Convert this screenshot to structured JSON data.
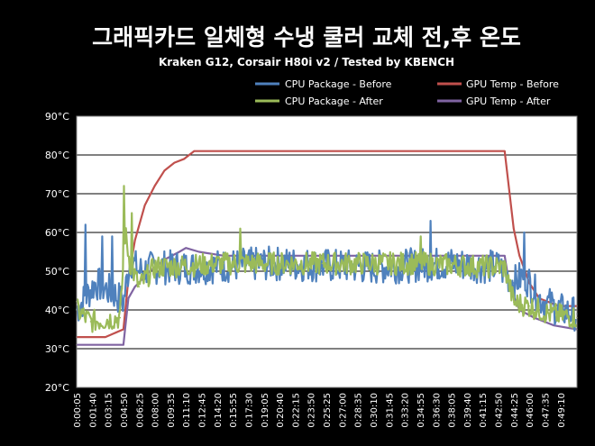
{
  "chart_data": {
    "type": "line",
    "title": "그래픽카드 일체형 수냉 쿨러 교체 전,후 온도",
    "subtitle": "Kraken G12, Corsair H80i v2 / Tested by KBENCH",
    "xlabel": "",
    "ylabel": "",
    "y_unit": "°C",
    "ylim": [
      20,
      90
    ],
    "y_ticks": [
      "20°C",
      "30°C",
      "40°C",
      "50°C",
      "60°C",
      "70°C",
      "80°C",
      "90°C"
    ],
    "grid": true,
    "legend_position": "top-right",
    "x_tick_labels": [
      "0:00:05",
      "0:01:40",
      "0:03:15",
      "0:04:50",
      "0:06:25",
      "0:08:00",
      "0:09:35",
      "0:11:10",
      "0:12:45",
      "0:14:20",
      "0:15:55",
      "0:17:30",
      "0:19:05",
      "0:20:40",
      "0:22:15",
      "0:23:50",
      "0:25:25",
      "0:27:00",
      "0:28:35",
      "0:30:10",
      "0:31:45",
      "0:33:20",
      "0:34:55",
      "0:36:30",
      "0:38:05",
      "0:39:40",
      "0:41:15",
      "0:42:50",
      "0:44:25",
      "0:46:00",
      "0:47:35",
      "0:49:10"
    ],
    "x_range_seconds": [
      5,
      3050
    ],
    "series": [
      {
        "name": "CPU  Package - Before",
        "color": "#4f81bd",
        "x": [
          "0:00:05",
          "0:02:00",
          "0:04:00",
          "0:04:50",
          "0:05:30",
          "0:06:25",
          "0:08:00",
          "0:12:00",
          "0:20:00",
          "0:30:00",
          "0:38:00",
          "0:43:00",
          "0:44:25",
          "0:45:30",
          "0:47:00",
          "0:49:00",
          "0:50:50"
        ],
        "y": [
          40,
          47,
          44,
          42,
          53,
          50,
          51,
          51,
          52,
          51,
          52,
          51,
          47,
          49,
          43,
          40,
          39
        ],
        "noise_amp": 4.5,
        "spikes": [
          [
            "0:01:00",
            62
          ],
          [
            "0:02:40",
            59
          ],
          [
            "0:03:40",
            59
          ],
          [
            "0:04:20",
            60
          ],
          [
            "0:10:20",
            60
          ],
          [
            "0:36:00",
            63
          ],
          [
            "0:45:30",
            60
          ]
        ]
      },
      {
        "name": "CPU  Package - After",
        "color": "#9bbb59",
        "x": [
          "0:00:05",
          "0:01:30",
          "0:04:30",
          "0:05:00",
          "0:05:30",
          "0:06:25",
          "0:08:00",
          "0:15:00",
          "0:25:00",
          "0:35:00",
          "0:43:30",
          "0:44:25",
          "0:46:00",
          "0:48:00",
          "0:50:50"
        ],
        "y": [
          40,
          37,
          38,
          60,
          52,
          46,
          51,
          52,
          52,
          52,
          51,
          42,
          41,
          39,
          38
        ],
        "noise_amp": 3.0,
        "spikes": [
          [
            "0:04:55",
            72
          ],
          [
            "0:05:40",
            65
          ],
          [
            "0:16:40",
            61
          ],
          [
            "0:35:00",
            59
          ]
        ]
      },
      {
        "name": "GPU  Temp - Before",
        "color": "#c0504d",
        "x": [
          "0:00:05",
          "0:03:00",
          "0:04:50",
          "0:05:20",
          "0:06:00",
          "0:07:00",
          "0:08:00",
          "0:09:00",
          "0:10:00",
          "0:11:00",
          "0:12:00",
          "0:30:00",
          "0:43:30",
          "0:44:00",
          "0:44:25",
          "0:45:00",
          "0:46:00",
          "0:47:00",
          "0:48:00",
          "0:49:00",
          "0:50:50"
        ],
        "y": [
          33,
          33,
          35,
          48,
          58,
          67,
          72,
          76,
          78,
          79,
          81,
          81,
          81,
          70,
          61,
          54,
          47,
          43,
          42,
          41,
          41
        ]
      },
      {
        "name": "GPU  Temp - After",
        "color": "#8064a2",
        "x": [
          "0:00:05",
          "0:04:50",
          "0:05:20",
          "0:06:00",
          "0:07:30",
          "0:09:00",
          "0:10:30",
          "0:11:10",
          "0:12:30",
          "0:15:00",
          "0:30:00",
          "0:43:30",
          "0:44:00",
          "0:45:00",
          "0:46:30",
          "0:47:30",
          "0:48:30",
          "0:50:50"
        ],
        "y": [
          31,
          31,
          43,
          46,
          50,
          53,
          55,
          56,
          55,
          54,
          54,
          54,
          46,
          40,
          38,
          37,
          36,
          35
        ]
      }
    ]
  }
}
